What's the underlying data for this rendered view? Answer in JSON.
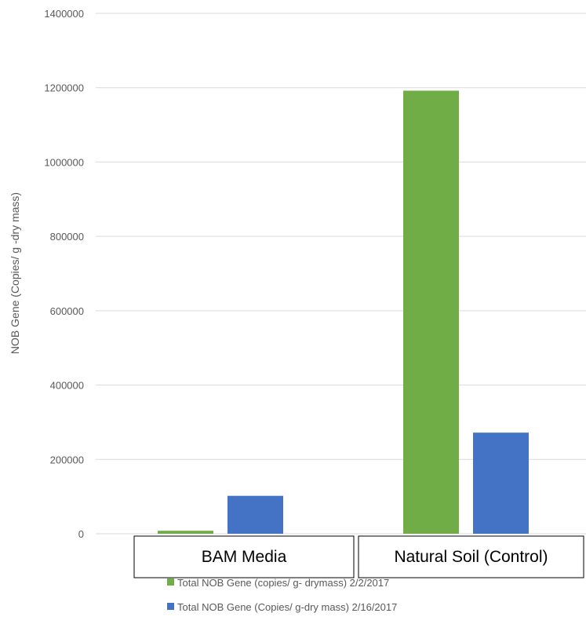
{
  "colors": {
    "series_1": "#70AD47",
    "series_2": "#4472C4",
    "gridline": "#D9D9D9",
    "axis_text": "#595959"
  },
  "chart_data": {
    "type": "bar",
    "title": "",
    "xlabel": "",
    "ylabel": "NOB Gene (Copies/ g -dry mass)",
    "categories": [
      "BAM Media",
      "Natural Soil (Control)"
    ],
    "series": [
      {
        "name": "Total NOB Gene (copies/ g- drymass) 2/2/2017",
        "values": [
          8000,
          1192000
        ]
      },
      {
        "name": "Total NOB Gene (Copies/ g-dry mass) 2/16/2017",
        "values": [
          102000,
          272000
        ]
      }
    ],
    "ylim": [
      0,
      1400000
    ],
    "yticks": [
      0,
      200000,
      400000,
      600000,
      800000,
      1000000,
      1200000,
      1400000
    ],
    "ytick_labels": [
      "0",
      "200000",
      "400000",
      "600000",
      "800000",
      "1000000",
      "1200000",
      "1400000"
    ],
    "grid": true,
    "legend_position": "bottom"
  }
}
